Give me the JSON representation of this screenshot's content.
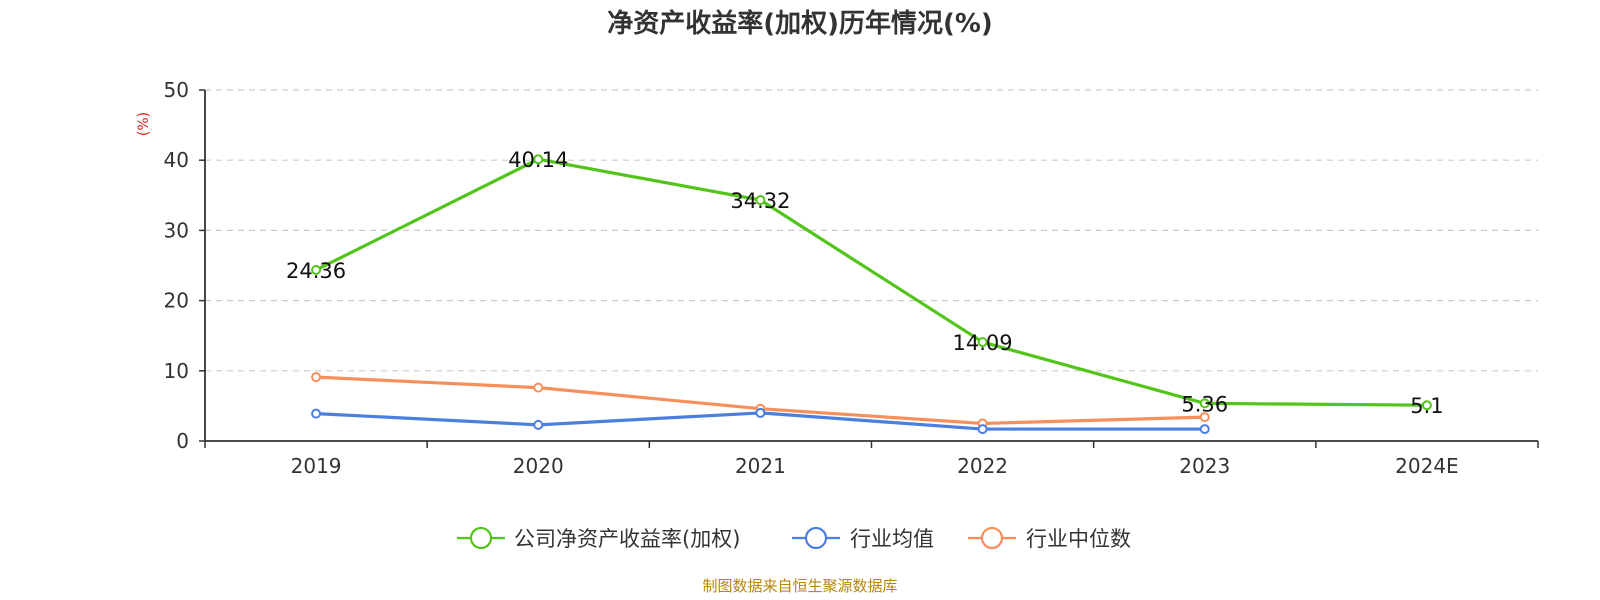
{
  "chart_data": {
    "type": "line",
    "title": "净资产收益率(加权)历年情况(%)",
    "ylabel": "(%)",
    "xlabel": "",
    "ylim": [
      0,
      50
    ],
    "yticks": [
      "0",
      "10",
      "20",
      "30",
      "40",
      "50"
    ],
    "grid": true,
    "legend_position": "bottom-center",
    "categories": [
      "2019",
      "2020",
      "2021",
      "2022",
      "2023",
      "2024E"
    ],
    "series": [
      {
        "name": "公司净资产收益率(加权)",
        "color": "#52c41a",
        "values": [
          24.36,
          40.14,
          34.32,
          14.09,
          5.36,
          5.1
        ],
        "labels": [
          "24.36",
          "40.14",
          "34.32",
          "14.09",
          "5.36",
          "5.1"
        ]
      },
      {
        "name": "行业均值",
        "color": "#4a7fe0",
        "values": [
          3.9,
          2.3,
          4.0,
          1.7,
          1.7,
          null
        ]
      },
      {
        "name": "行业中位数",
        "color": "#f78f5c",
        "values": [
          9.1,
          7.6,
          4.6,
          2.5,
          3.4,
          null
        ]
      }
    ],
    "source": "制图数据来自恒生聚源数据库"
  }
}
